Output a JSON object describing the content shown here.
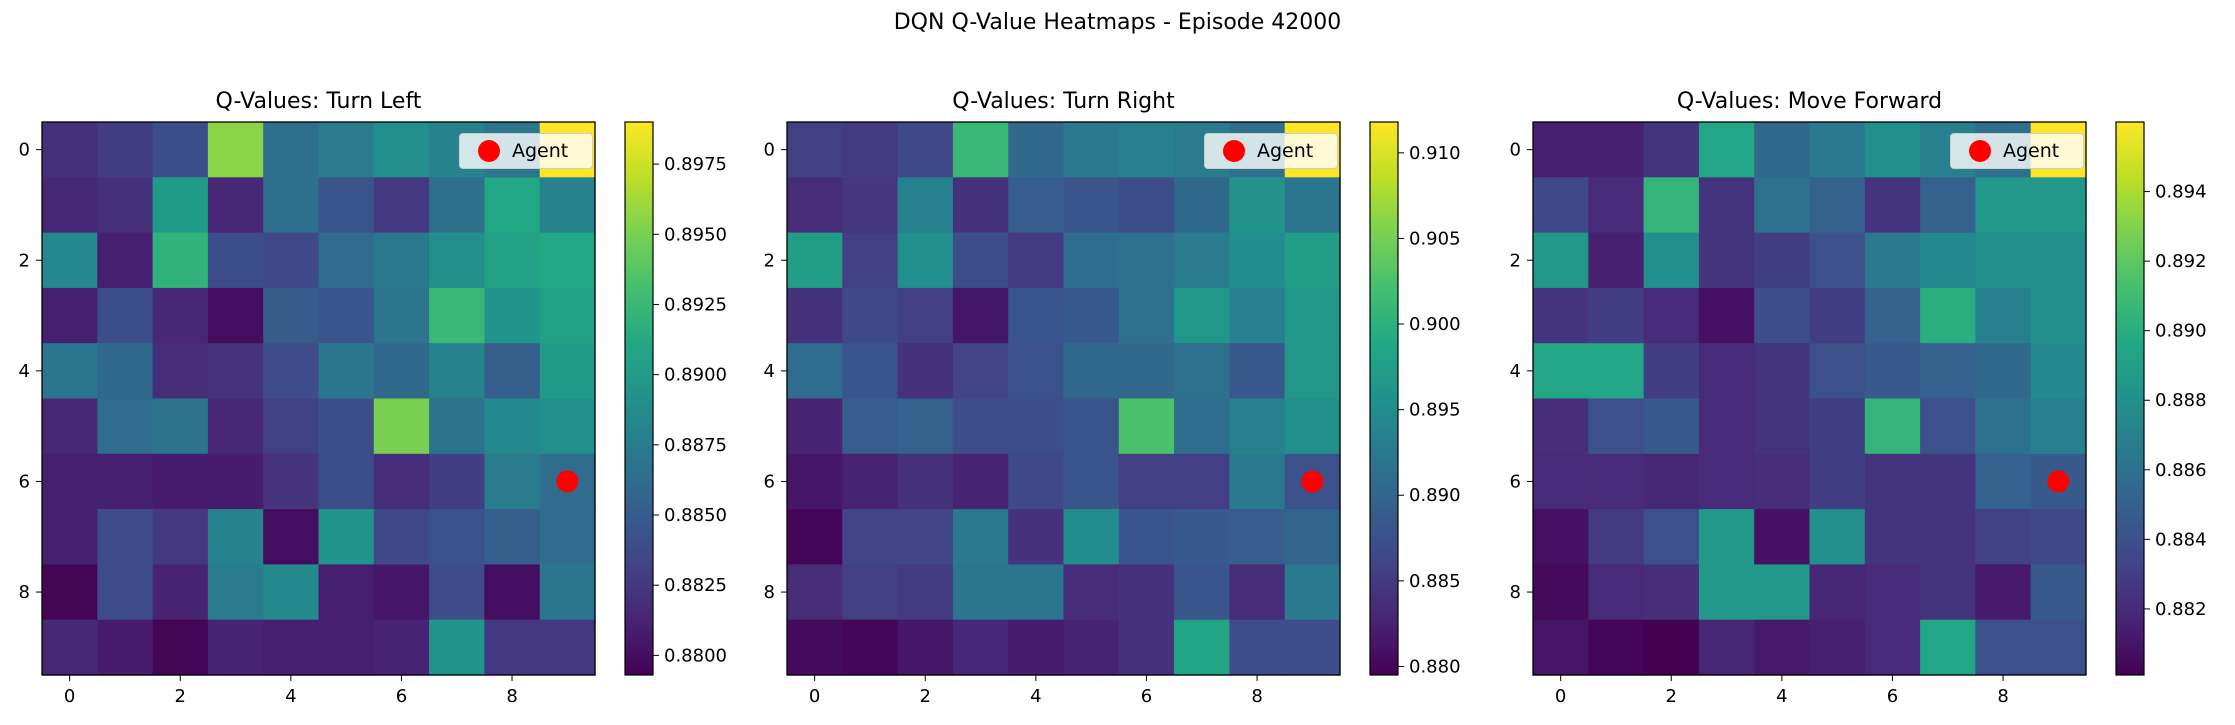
{
  "title": "DQN Q-Value Heatmaps - Episode 42000",
  "chart_data": [
    {
      "type": "heatmap",
      "title": "Q-Values: Turn Left",
      "colormap": "viridis",
      "x_ticks": [
        "0",
        "2",
        "4",
        "6",
        "8"
      ],
      "y_ticks": [
        "0",
        "2",
        "4",
        "6",
        "8"
      ],
      "vmin": 0.8793,
      "vmax": 0.899,
      "colorbar_ticks": [
        "0.8800",
        "0.8825",
        "0.8850",
        "0.8875",
        "0.8900",
        "0.8925",
        "0.8950",
        "0.8975"
      ],
      "colorbar_values": [
        0.88,
        0.8825,
        0.885,
        0.8875,
        0.89,
        0.8925,
        0.895,
        0.8975
      ],
      "agent": {
        "row": 6,
        "col": 9
      },
      "legend": "Agent",
      "values": [
        [
          0.882,
          0.8828,
          0.884,
          0.8955,
          0.8865,
          0.8875,
          0.889,
          0.888,
          0.887,
          0.899
        ],
        [
          0.8815,
          0.882,
          0.89,
          0.8815,
          0.8865,
          0.8845,
          0.8825,
          0.8865,
          0.891,
          0.888
        ],
        [
          0.8885,
          0.881,
          0.892,
          0.884,
          0.8835,
          0.8862,
          0.8872,
          0.889,
          0.8905,
          0.891
        ],
        [
          0.881,
          0.884,
          0.8815,
          0.88,
          0.885,
          0.8845,
          0.887,
          0.8925,
          0.8895,
          0.8905
        ],
        [
          0.887,
          0.886,
          0.8818,
          0.8822,
          0.8838,
          0.887,
          0.886,
          0.888,
          0.8852,
          0.89
        ],
        [
          0.8815,
          0.8862,
          0.8868,
          0.8815,
          0.883,
          0.884,
          0.895,
          0.8868,
          0.8885,
          0.889
        ],
        [
          0.881,
          0.881,
          0.8808,
          0.8808,
          0.8822,
          0.884,
          0.8818,
          0.8828,
          0.8875,
          0.8862
        ],
        [
          0.881,
          0.8838,
          0.8825,
          0.888,
          0.88,
          0.8895,
          0.8835,
          0.8842,
          0.8852,
          0.8862
        ],
        [
          0.8795,
          0.8838,
          0.8812,
          0.8875,
          0.8885,
          0.881,
          0.8805,
          0.8838,
          0.88,
          0.887
        ],
        [
          0.8815,
          0.8808,
          0.8795,
          0.8812,
          0.881,
          0.881,
          0.8812,
          0.8895,
          0.8825,
          0.8825
        ]
      ]
    },
    {
      "type": "heatmap",
      "title": "Q-Values: Turn Right",
      "colormap": "viridis",
      "x_ticks": [
        "0",
        "2",
        "4",
        "6",
        "8"
      ],
      "y_ticks": [
        "0",
        "2",
        "4",
        "6",
        "8"
      ],
      "vmin": 0.8795,
      "vmax": 0.9118,
      "colorbar_ticks": [
        "0.880",
        "0.885",
        "0.890",
        "0.895",
        "0.900",
        "0.905",
        "0.910"
      ],
      "colorbar_values": [
        0.88,
        0.885,
        0.89,
        0.895,
        0.9,
        0.905,
        0.91
      ],
      "agent": {
        "row": 6,
        "col": 9
      },
      "legend": "Agent",
      "values": [
        [
          0.8855,
          0.885,
          0.8865,
          0.901,
          0.8905,
          0.8925,
          0.8935,
          0.893,
          0.8915,
          0.9118
        ],
        [
          0.8835,
          0.8845,
          0.8935,
          0.884,
          0.889,
          0.888,
          0.887,
          0.8905,
          0.896,
          0.892
        ],
        [
          0.8975,
          0.8855,
          0.8955,
          0.887,
          0.885,
          0.891,
          0.8915,
          0.893,
          0.895,
          0.8975
        ],
        [
          0.884,
          0.8865,
          0.8855,
          0.8815,
          0.888,
          0.8885,
          0.8915,
          0.8965,
          0.8935,
          0.8965
        ],
        [
          0.891,
          0.888,
          0.884,
          0.886,
          0.8875,
          0.8905,
          0.8905,
          0.8915,
          0.8885,
          0.8965
        ],
        [
          0.8825,
          0.889,
          0.8895,
          0.887,
          0.887,
          0.888,
          0.9025,
          0.891,
          0.8935,
          0.8955
        ],
        [
          0.8815,
          0.8825,
          0.884,
          0.8825,
          0.8865,
          0.888,
          0.8855,
          0.8855,
          0.8925,
          0.8875
        ],
        [
          0.88,
          0.886,
          0.886,
          0.8925,
          0.884,
          0.895,
          0.888,
          0.8885,
          0.889,
          0.89
        ],
        [
          0.8835,
          0.8855,
          0.885,
          0.892,
          0.892,
          0.8835,
          0.884,
          0.888,
          0.8835,
          0.8925
        ],
        [
          0.8805,
          0.88,
          0.8815,
          0.883,
          0.882,
          0.8825,
          0.884,
          0.8985,
          0.887,
          0.887
        ]
      ]
    },
    {
      "type": "heatmap",
      "title": "Q-Values: Move Forward",
      "colormap": "viridis",
      "x_ticks": [
        "0",
        "2",
        "4",
        "6",
        "8"
      ],
      "y_ticks": [
        "0",
        "2",
        "4",
        "6",
        "8"
      ],
      "vmin": 0.8801,
      "vmax": 0.896,
      "colorbar_ticks": [
        "0.882",
        "0.884",
        "0.886",
        "0.888",
        "0.890",
        "0.892",
        "0.894"
      ],
      "colorbar_values": [
        0.882,
        0.884,
        0.886,
        0.888,
        0.89,
        0.892,
        0.894
      ],
      "agent": {
        "row": 6,
        "col": 9
      },
      "legend": "Agent",
      "values": [
        [
          0.8815,
          0.8815,
          0.8825,
          0.8895,
          0.8855,
          0.8865,
          0.888,
          0.887,
          0.886,
          0.896
        ],
        [
          0.8835,
          0.882,
          0.8905,
          0.8825,
          0.886,
          0.885,
          0.8825,
          0.885,
          0.8885,
          0.8885
        ],
        [
          0.8885,
          0.8815,
          0.888,
          0.8825,
          0.883,
          0.884,
          0.8865,
          0.8875,
          0.888,
          0.888
        ],
        [
          0.8825,
          0.883,
          0.882,
          0.8808,
          0.8838,
          0.883,
          0.885,
          0.89,
          0.887,
          0.888
        ],
        [
          0.8895,
          0.8895,
          0.883,
          0.882,
          0.8825,
          0.884,
          0.8845,
          0.885,
          0.8855,
          0.8875
        ],
        [
          0.8822,
          0.884,
          0.8845,
          0.882,
          0.8825,
          0.883,
          0.8905,
          0.884,
          0.886,
          0.887
        ],
        [
          0.882,
          0.882,
          0.8818,
          0.882,
          0.8822,
          0.883,
          0.8825,
          0.8825,
          0.885,
          0.8845
        ],
        [
          0.8808,
          0.8828,
          0.884,
          0.8885,
          0.8808,
          0.888,
          0.8825,
          0.8825,
          0.8832,
          0.8835
        ],
        [
          0.8805,
          0.882,
          0.8822,
          0.8885,
          0.8885,
          0.8818,
          0.882,
          0.8825,
          0.8812,
          0.8845
        ],
        [
          0.881,
          0.8803,
          0.8801,
          0.8818,
          0.8812,
          0.8815,
          0.882,
          0.8895,
          0.884,
          0.884
        ]
      ]
    }
  ]
}
